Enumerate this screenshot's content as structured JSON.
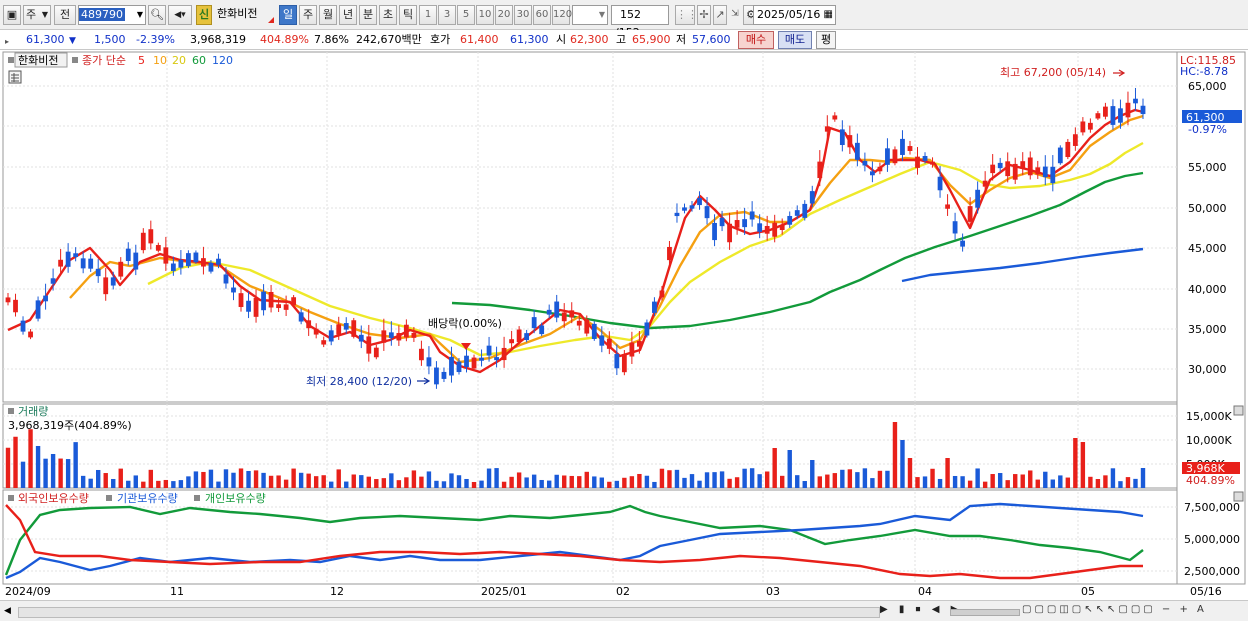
{
  "toolbar": {
    "market_select": "주",
    "prev_label": "전",
    "code_value": "489790",
    "stock_badge": "신",
    "stock_name": "한화비전",
    "periods": [
      "일",
      "주",
      "월",
      "년",
      "분",
      "초",
      "틱"
    ],
    "active_period": "일",
    "intervals": [
      "1",
      "3",
      "5",
      "10",
      "20",
      "30",
      "60",
      "120"
    ],
    "count_value": "152",
    "count_total": "/152",
    "date_value": "2025/05/16"
  },
  "quote": {
    "price": "61,300",
    "change_arrow": "▼",
    "change": "1,500",
    "change_pct": "-2.39%",
    "volume": "3,968,319",
    "volume_ratio": "404.89%",
    "turnover": "7.86%",
    "amount": "242,670백만",
    "bid_label": "호가",
    "bid1": "61,400",
    "bid2": "61,300",
    "open_label": "시",
    "open": "62,300",
    "high_label": "고",
    "high": "65,900",
    "low_label": "저",
    "low": "57,600",
    "buy_button": "매수",
    "sell_button": "매도",
    "eval_button": "평"
  },
  "price_panel": {
    "legend_name": "한화비전",
    "legend_ma_label": "종가 단순",
    "legend_periods": [
      "5",
      "10",
      "20",
      "60",
      "120"
    ],
    "legend_colors": [
      "#e8201a",
      "#f5a011",
      "#eee92a",
      "#129a3a",
      "#1a5ad8"
    ],
    "lc_label": "LC:115.85",
    "hc_label": "HC:-8.78",
    "price_ticks": [
      "65,000",
      "60,000",
      "55,000",
      "50,000",
      "45,000",
      "40,000",
      "35,000",
      "30,000"
    ],
    "current_price_tag": "61,300",
    "current_pct_tag": "-0.97%",
    "high_annotation": "최고 67,200 (05/14)",
    "low_annotation": "최저 28,400 (12/20)",
    "dividend_annotation": "배당락(0.00%)"
  },
  "volume_panel": {
    "title": "거래량",
    "value_label": "3,968,319주(404.89%)",
    "ticks": [
      "15,000K",
      "10,000K",
      "5,000K"
    ],
    "current_tag": "3,968K",
    "current_pct": "404.89%"
  },
  "holding_panel": {
    "legend": [
      "외국인보유수량",
      "기관보유수량",
      "개인보유수량"
    ],
    "colors": [
      "#e8201a",
      "#1a5ad8",
      "#129a3a"
    ],
    "ticks": [
      "7,500,000",
      "5,000,000",
      "2,500,000"
    ]
  },
  "x_axis": {
    "labels": [
      "2024/09",
      "11",
      "12",
      "2025/01",
      "02",
      "03",
      "04",
      "05",
      "05/16"
    ]
  },
  "colors": {
    "up_candle": "#e8201a",
    "down_candle": "#1a5ad8",
    "accent": "#3e77c8"
  }
}
